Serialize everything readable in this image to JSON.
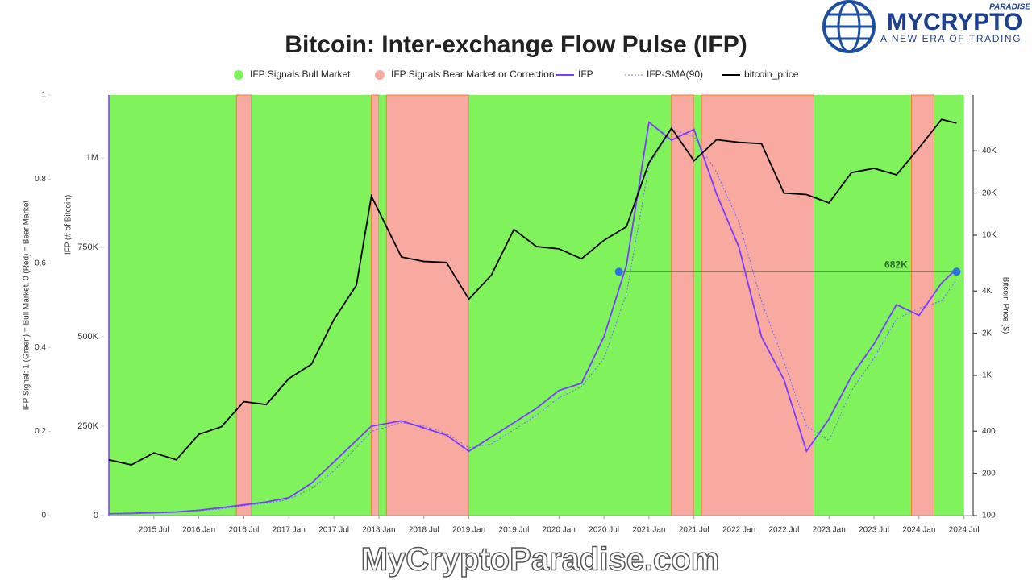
{
  "chart_data": {
    "type": "line",
    "title": "Bitcoin: Inter-exchange Flow Pulse (IFP)",
    "xlim": [
      "2015 Jan",
      "2024 Aug"
    ],
    "xticks": [
      "2015 Jul",
      "2016 Jan",
      "2016 Jul",
      "2017 Jan",
      "2017 Jul",
      "2018 Jan",
      "2018 Jul",
      "2019 Jan",
      "2019 Jul",
      "2020 Jan",
      "2020 Jul",
      "2021 Jan",
      "2021 Jul",
      "2022 Jan",
      "2022 Jul",
      "2023 Jan",
      "2023 Jul",
      "2024 Jan",
      "2024 Jul"
    ],
    "x": [
      "2015 Jan",
      "2015 Apr",
      "2015 Jul",
      "2015 Oct",
      "2016 Jan",
      "2016 Apr",
      "2016 Jul",
      "2016 Oct",
      "2017 Jan",
      "2017 Apr",
      "2017 Jul",
      "2017 Oct",
      "2017 Dec",
      "2018 Apr",
      "2018 Jul",
      "2018 Oct",
      "2019 Jan",
      "2019 Apr",
      "2019 Jul",
      "2019 Oct",
      "2020 Jan",
      "2020 Apr",
      "2020 Jul",
      "2020 Oct",
      "2021 Jan",
      "2021 Apr",
      "2021 Jul",
      "2021 Oct",
      "2022 Jan",
      "2022 Apr",
      "2022 Jul",
      "2022 Oct",
      "2023 Jan",
      "2023 Apr",
      "2023 Jul",
      "2023 Oct",
      "2024 Jan",
      "2024 Apr",
      "2024 Jun"
    ],
    "series": [
      {
        "name": "IFP",
        "color": "#7b3cff",
        "axis": "y",
        "dashed": false,
        "values": [
          5000,
          6000,
          8000,
          10000,
          15000,
          22000,
          30000,
          38000,
          50000,
          90000,
          150000,
          210000,
          250000,
          265000,
          245000,
          225000,
          180000,
          220000,
          260000,
          300000,
          350000,
          370000,
          500000,
          700000,
          1100000,
          1050000,
          1080000,
          900000,
          750000,
          500000,
          380000,
          180000,
          270000,
          390000,
          480000,
          590000,
          560000,
          650000,
          690000
        ]
      },
      {
        "name": "IFP-SMA(90)",
        "color": "#6a6aff",
        "axis": "y",
        "dashed": true,
        "values": [
          4000,
          5000,
          7000,
          9000,
          13000,
          19000,
          27000,
          35000,
          45000,
          75000,
          125000,
          190000,
          235000,
          260000,
          250000,
          230000,
          190000,
          200000,
          240000,
          280000,
          330000,
          360000,
          440000,
          620000,
          980000,
          1080000,
          1060000,
          960000,
          820000,
          600000,
          430000,
          250000,
          210000,
          350000,
          440000,
          550000,
          580000,
          600000,
          660000
        ]
      },
      {
        "name": "bitcoin_price",
        "color": "#000000",
        "axis": "y2",
        "dashed": false,
        "values": [
          250,
          230,
          280,
          250,
          380,
          430,
          650,
          620,
          950,
          1200,
          2500,
          4400,
          19000,
          7000,
          6500,
          6400,
          3500,
          5200,
          11000,
          8300,
          8000,
          6800,
          9200,
          11500,
          33000,
          58000,
          34000,
          48000,
          46000,
          45000,
          20000,
          19500,
          17000,
          28000,
          30000,
          27000,
          42000,
          67000,
          63000
        ]
      }
    ],
    "ylabel": "IFP (# of Bitcoin)",
    "ylim": [
      0,
      1176000
    ],
    "yticks": [
      0,
      {
        "value": 250000,
        "label": "250K"
      },
      {
        "value": 500000,
        "label": "500K"
      },
      {
        "value": 750000,
        "label": "750K"
      },
      {
        "value": 1000000,
        "label": "1M"
      }
    ],
    "y2label": "Bitcoin Price ($)",
    "y2log": true,
    "y2lim": [
      100,
      100000
    ],
    "y2ticks": [
      100,
      200,
      400,
      {
        "value": 1000,
        "label": "1K"
      },
      {
        "value": 2000,
        "label": "2K"
      },
      {
        "value": 4000,
        "label": "4K"
      },
      {
        "value": 10000,
        "label": "10K"
      },
      {
        "value": 20000,
        "label": "20K"
      },
      {
        "value": 40000,
        "label": "40K"
      }
    ],
    "signal": {
      "label": "IFP Signal: 1 (Green) = Bull Market, 0 (Red) = Bear Market",
      "ylim": [
        0,
        1
      ],
      "yticks": [
        0,
        0.2,
        0.4,
        0.6,
        0.8,
        1
      ],
      "bull_label": "IFP Signals Bull Market",
      "bull_color": "#80f25c",
      "bear_label": "IFP Signals Bear Market or Correction",
      "bear_color": "#f8aaa0",
      "periods": [
        {
          "start": "2015 Jan",
          "end": "2016 Jun",
          "value": 1
        },
        {
          "start": "2016 Jun",
          "end": "2016 Aug",
          "value": 0
        },
        {
          "start": "2016 Aug",
          "end": "2017 Dec",
          "value": 1
        },
        {
          "start": "2017 Dec",
          "end": "2018 Jan",
          "value": 0
        },
        {
          "start": "2018 Jan",
          "end": "2018 Feb",
          "value": 1
        },
        {
          "start": "2018 Feb",
          "end": "2019 Jan",
          "value": 0
        },
        {
          "start": "2019 Jan",
          "end": "2021 Apr",
          "value": 1
        },
        {
          "start": "2021 Apr",
          "end": "2021 Jul",
          "value": 0
        },
        {
          "start": "2021 Jul",
          "end": "2021 Aug",
          "value": 1
        },
        {
          "start": "2021 Aug",
          "end": "2022 Nov",
          "value": 0
        },
        {
          "start": "2022 Nov",
          "end": "2023 Dec",
          "value": 1
        },
        {
          "start": "2023 Dec",
          "end": "2024 Mar",
          "value": 0
        },
        {
          "start": "2024 Mar",
          "end": "2024 Jul",
          "value": 1
        }
      ]
    },
    "annotation": {
      "text": "682K",
      "value": 682000,
      "x_start": "2020 Sep",
      "x_end": "2024 Jun"
    }
  },
  "logo": {
    "name": "MYCRYPTO",
    "tag": "PARADISE",
    "slogan": "A NEW ERA OF TRADING"
  },
  "watermark": "MyCryptoParadise.com"
}
